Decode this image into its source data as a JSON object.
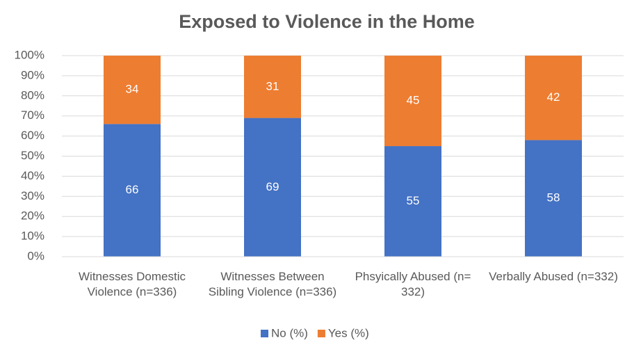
{
  "chart_data": {
    "type": "stacked_bar",
    "title": "Exposed to Violence in the Home",
    "categories": [
      "Witnesses Domestic Violence (n=336)",
      "Witnesses Between Sibling Violence (n=336)",
      "Phsyically Abused (n= 332)",
      "Verbally Abused (n=332)"
    ],
    "series": [
      {
        "name": "No (%)",
        "color": "#4472c4",
        "values": [
          66,
          69,
          55,
          58
        ]
      },
      {
        "name": "Yes (%)",
        "color": "#ed7d31",
        "values": [
          34,
          31,
          45,
          42
        ]
      }
    ],
    "ylim": [
      0,
      100
    ],
    "yticks": [
      {
        "value": 0,
        "label": "0%"
      },
      {
        "value": 10,
        "label": "10%"
      },
      {
        "value": 20,
        "label": "20%"
      },
      {
        "value": 30,
        "label": "30%"
      },
      {
        "value": 40,
        "label": "40%"
      },
      {
        "value": 50,
        "label": "50%"
      },
      {
        "value": 60,
        "label": "60%"
      },
      {
        "value": 70,
        "label": "70%"
      },
      {
        "value": 80,
        "label": "80%"
      },
      {
        "value": 90,
        "label": "90%"
      },
      {
        "value": 100,
        "label": "100%"
      }
    ],
    "grid": true,
    "legend": "bottom"
  }
}
